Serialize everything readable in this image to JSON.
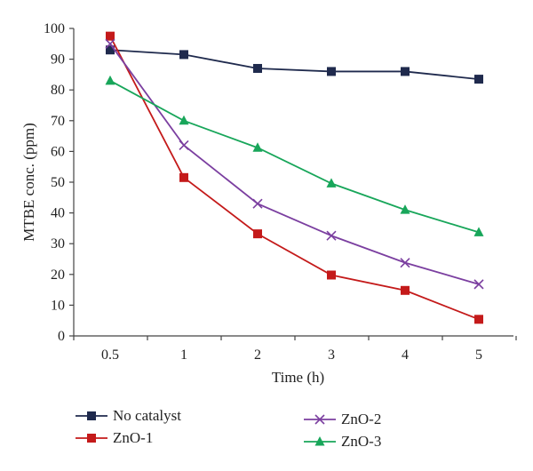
{
  "chart_data": {
    "type": "line",
    "title": "",
    "xlabel": "Time (h)",
    "ylabel": "MTBE conc. (ppm)",
    "categories": [
      "0.5",
      "1",
      "2",
      "3",
      "4",
      "5"
    ],
    "ylim": [
      0,
      100
    ],
    "yticks": [
      "0",
      "10",
      "20",
      "30",
      "40",
      "50",
      "60",
      "70",
      "80",
      "90",
      "100"
    ],
    "grid": false,
    "legend_position": "bottom",
    "series": [
      {
        "name": "No catalyst",
        "values": [
          93,
          91.5,
          87,
          86,
          86,
          83.5
        ],
        "color": "#1f2a4d",
        "marker": "square"
      },
      {
        "name": "ZnO-1",
        "values": [
          97.5,
          51.5,
          33.2,
          19.8,
          14.8,
          5.4
        ],
        "color": "#c41a1a",
        "marker": "square"
      },
      {
        "name": "ZnO-2",
        "values": [
          95,
          62,
          43,
          32.6,
          23.8,
          16.8
        ],
        "color": "#7b3fa0",
        "marker": "x"
      },
      {
        "name": "ZnO-3",
        "values": [
          83,
          70,
          61.2,
          49.6,
          41,
          33.7
        ],
        "color": "#18a65a",
        "marker": "triangle"
      }
    ]
  }
}
